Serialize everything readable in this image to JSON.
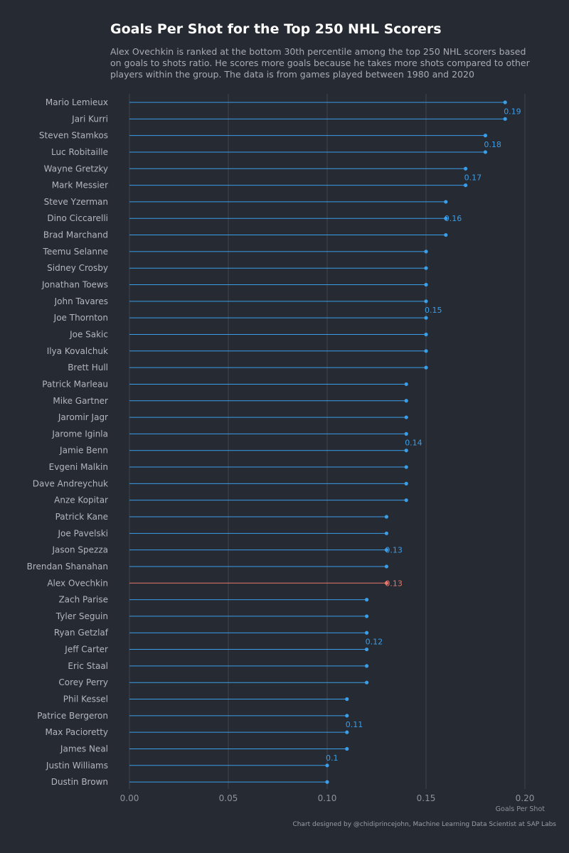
{
  "title": "Goals Per Shot for the Top 250 NHL Scorers",
  "subtitle": "Alex Ovechkin is ranked at the bottom 30th percentile among the top 250 NHL scorers based on goals to shots ratio. He scores more goals because he takes more shots compared to other players within the group. The data is from games played between 1980 and 2020",
  "credit": "Chart designed by @chidiprincejohn, Machine Learning Data Scientist at SAP Labs",
  "colors": {
    "background": "#262a33",
    "series": "#3a9ee8",
    "highlight": "#e8766c",
    "grid": "#3f444e"
  },
  "chart_data": {
    "type": "lollipop",
    "xlabel": "Goals Per Shot",
    "xlim": [
      0,
      0.2
    ],
    "xticks": [
      "0.00",
      "0.05",
      "0.10",
      "0.15",
      "0.20"
    ],
    "grid": "vertical",
    "highlight": "Alex Ovechkin",
    "players": [
      {
        "name": "Mario Lemieux",
        "value": 0.19
      },
      {
        "name": "Jari Kurri",
        "value": 0.19
      },
      {
        "name": "Steven Stamkos",
        "value": 0.18
      },
      {
        "name": "Luc Robitaille",
        "value": 0.18
      },
      {
        "name": "Wayne Gretzky",
        "value": 0.17
      },
      {
        "name": "Mark Messier",
        "value": 0.17
      },
      {
        "name": "Steve Yzerman",
        "value": 0.16
      },
      {
        "name": "Dino Ciccarelli",
        "value": 0.16
      },
      {
        "name": "Brad Marchand",
        "value": 0.16
      },
      {
        "name": "Teemu Selanne",
        "value": 0.15
      },
      {
        "name": "Sidney Crosby",
        "value": 0.15
      },
      {
        "name": "Jonathan Toews",
        "value": 0.15
      },
      {
        "name": "John Tavares",
        "value": 0.15
      },
      {
        "name": "Joe Thornton",
        "value": 0.15
      },
      {
        "name": "Joe Sakic",
        "value": 0.15
      },
      {
        "name": "Ilya Kovalchuk",
        "value": 0.15
      },
      {
        "name": "Brett Hull",
        "value": 0.15
      },
      {
        "name": "Patrick Marleau",
        "value": 0.14
      },
      {
        "name": "Mike Gartner",
        "value": 0.14
      },
      {
        "name": "Jaromir Jagr",
        "value": 0.14
      },
      {
        "name": "Jarome Iginla",
        "value": 0.14
      },
      {
        "name": "Jamie Benn",
        "value": 0.14
      },
      {
        "name": "Evgeni Malkin",
        "value": 0.14
      },
      {
        "name": "Dave Andreychuk",
        "value": 0.14
      },
      {
        "name": "Anze Kopitar",
        "value": 0.14
      },
      {
        "name": "Patrick Kane",
        "value": 0.13
      },
      {
        "name": "Joe Pavelski",
        "value": 0.13
      },
      {
        "name": "Jason Spezza",
        "value": 0.13
      },
      {
        "name": "Brendan Shanahan",
        "value": 0.13
      },
      {
        "name": "Alex Ovechkin",
        "value": 0.13
      },
      {
        "name": "Zach Parise",
        "value": 0.12
      },
      {
        "name": "Tyler Seguin",
        "value": 0.12
      },
      {
        "name": "Ryan Getzlaf",
        "value": 0.12
      },
      {
        "name": "Jeff Carter",
        "value": 0.12
      },
      {
        "name": "Eric Staal",
        "value": 0.12
      },
      {
        "name": "Corey Perry",
        "value": 0.12
      },
      {
        "name": "Phil Kessel",
        "value": 0.11
      },
      {
        "name": "Patrice Bergeron",
        "value": 0.11
      },
      {
        "name": "Max Pacioretty",
        "value": 0.11
      },
      {
        "name": "James Neal",
        "value": 0.11
      },
      {
        "name": "Justin Williams",
        "value": 0.1
      },
      {
        "name": "Dustin Brown",
        "value": 0.1
      }
    ],
    "annotations": [
      {
        "text": "0.19",
        "player": "Jari Kurri",
        "value": 0.19,
        "color": "series"
      },
      {
        "text": "0.18",
        "player": "Luc Robitaille",
        "value": 0.18,
        "color": "series"
      },
      {
        "text": "0.17",
        "player": "Mark Messier",
        "value": 0.17,
        "color": "series"
      },
      {
        "text": "0.16",
        "player": "Dino Ciccarelli",
        "value": 0.16,
        "color": "series",
        "position": "right"
      },
      {
        "text": "0.15",
        "player": "Joe Thornton",
        "value": 0.15,
        "color": "series"
      },
      {
        "text": "0.14",
        "player": "Jamie Benn",
        "value": 0.14,
        "color": "series"
      },
      {
        "text": "0.13",
        "player": "Jason Spezza",
        "value": 0.13,
        "color": "series",
        "position": "right"
      },
      {
        "text": "0.13",
        "player": "Alex Ovechkin",
        "value": 0.13,
        "color": "highlight",
        "position": "right"
      },
      {
        "text": "0.12",
        "player": "Jeff Carter",
        "value": 0.12,
        "color": "series"
      },
      {
        "text": "0.11",
        "player": "Max Pacioretty",
        "value": 0.11,
        "color": "series"
      },
      {
        "text": "0.1",
        "player": "Justin Williams",
        "value": 0.1,
        "color": "series"
      }
    ]
  }
}
